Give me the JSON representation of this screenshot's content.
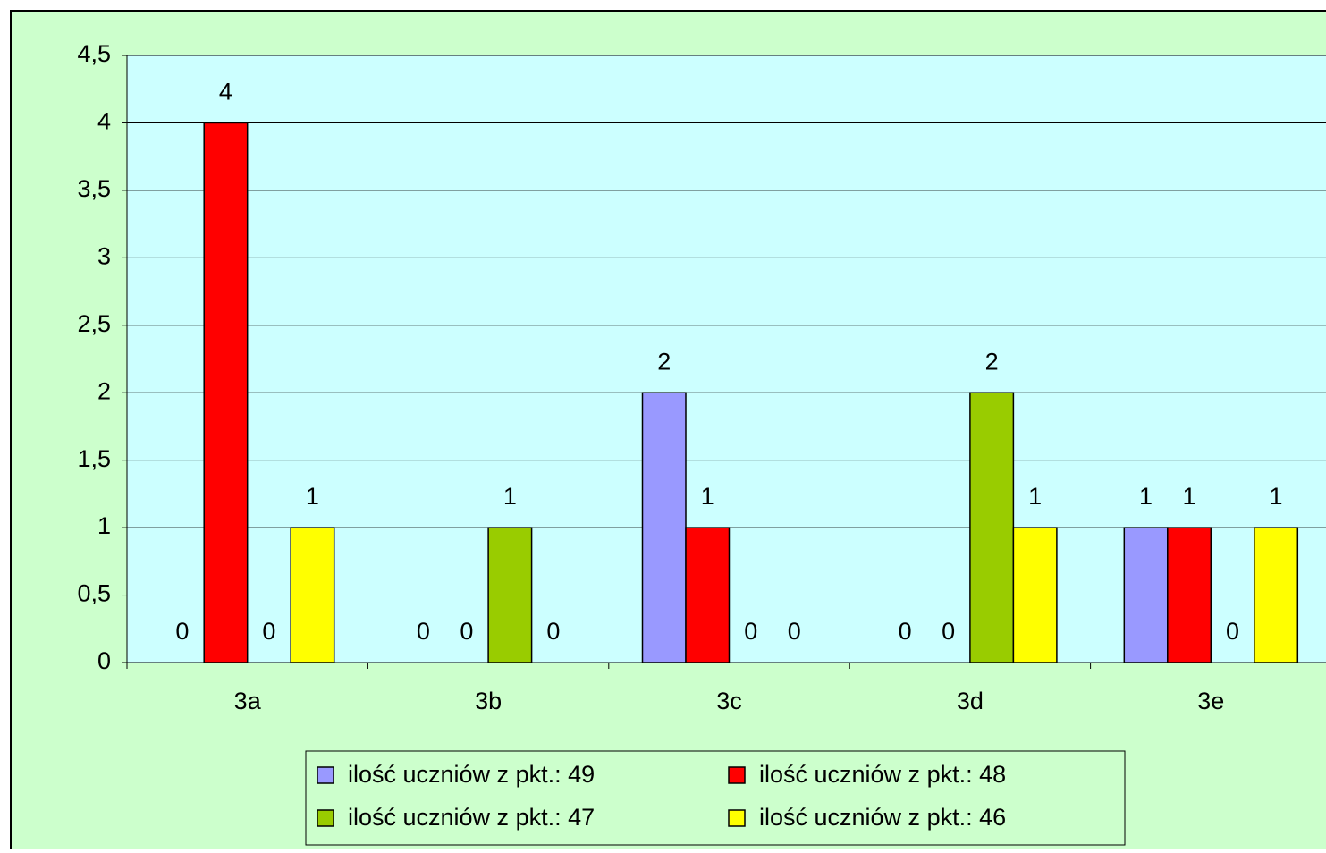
{
  "chart_data": {
    "type": "bar",
    "categories": [
      "3a",
      "3b",
      "3c",
      "3d",
      "3e"
    ],
    "series": [
      {
        "name": "ilość uczniów z pkt.: 49",
        "color": "#9999ff",
        "values": [
          0,
          0,
          2,
          0,
          1
        ]
      },
      {
        "name": "ilość uczniów z pkt.: 48",
        "color": "#ff0000",
        "values": [
          4,
          0,
          1,
          0,
          1
        ]
      },
      {
        "name": "ilość uczniów z pkt.: 47",
        "color": "#99cc00",
        "values": [
          0,
          1,
          0,
          2,
          0
        ]
      },
      {
        "name": "ilość uczniów z pkt.: 46",
        "color": "#ffff00",
        "values": [
          1,
          0,
          0,
          1,
          1
        ]
      }
    ],
    "ylim": [
      0,
      4.5
    ],
    "yticks": [
      0,
      {
        "value": 0.5,
        "label": "0,5"
      },
      1,
      {
        "value": 1.5,
        "label": "1,5"
      },
      2,
      {
        "value": 2.5,
        "label": "2,5"
      },
      3,
      {
        "value": 3.5,
        "label": "3,5"
      },
      4,
      {
        "value": 4.5,
        "label": "4,5"
      }
    ],
    "grid": true,
    "data_labels": true,
    "legend": "bottom"
  }
}
